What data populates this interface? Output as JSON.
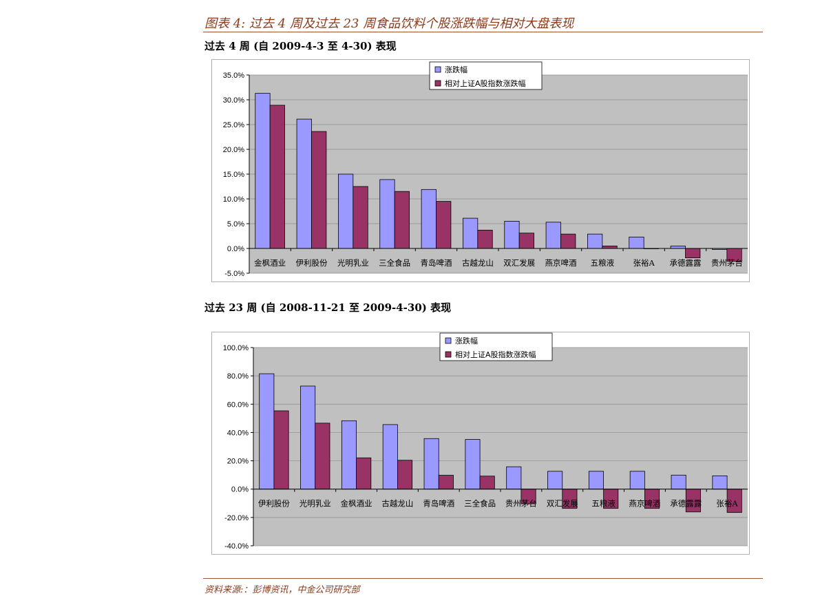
{
  "figure_title": "图表 4:  过去 4 周及过去 23 周食品饮料个股涨跌幅与相对大盘表现",
  "source": "资料来源:：彭博资讯，中金公司研究部",
  "colors": {
    "series1": "#9999ff",
    "series2": "#993366",
    "plot_bg": "#c0c0c0",
    "accent": "#8b3a1a"
  },
  "sections": [
    {
      "title": "过去 4 周  (自 2009-4-3 至 4-30)  表现"
    },
    {
      "title": "过去 23 周  (自 2008-11-21 至 2009-4-30)  表现"
    }
  ],
  "chart_data": [
    {
      "type": "bar",
      "title": "",
      "xlabel": "",
      "ylabel": "",
      "ylim": [
        -5,
        35
      ],
      "ytick_step": 5,
      "ytick_labels": [
        "-5.0%",
        "0.0%",
        "5.0%",
        "10.0%",
        "15.0%",
        "20.0%",
        "25.0%",
        "30.0%",
        "35.0%"
      ],
      "grid": true,
      "legend_position": "top-center",
      "categories": [
        "金枫酒业",
        "伊利股份",
        "光明乳业",
        "三全食品",
        "青岛啤酒",
        "古越龙山",
        "双汇发展",
        "燕京啤酒",
        "五粮液",
        "张裕A",
        "承德露露",
        "贵州茅台"
      ],
      "series": [
        {
          "name": "涨跌幅",
          "values": [
            31.3,
            26.1,
            15.0,
            13.9,
            11.9,
            6.1,
            5.5,
            5.3,
            2.9,
            2.3,
            0.5,
            -0.2
          ]
        },
        {
          "name": "相对上证A股指数涨跌幅",
          "values": [
            28.9,
            23.6,
            12.5,
            11.5,
            9.5,
            3.7,
            3.1,
            2.9,
            0.5,
            0.0,
            -1.9,
            -2.6
          ]
        }
      ]
    },
    {
      "type": "bar",
      "title": "",
      "xlabel": "",
      "ylabel": "",
      "ylim": [
        -40,
        100
      ],
      "ytick_step": 20,
      "ytick_labels": [
        "-40.0%",
        "-20.0%",
        "0.0%",
        "20.0%",
        "40.0%",
        "60.0%",
        "80.0%",
        "100.0%"
      ],
      "grid": true,
      "legend_position": "top-center",
      "categories": [
        "伊利股份",
        "光明乳业",
        "金枫酒业",
        "古越龙山",
        "青岛啤酒",
        "三全食品",
        "贵州茅台",
        "双汇发展",
        "五粮液",
        "燕京啤酒",
        "承德露露",
        "张裕A"
      ],
      "series": [
        {
          "name": "涨跌幅",
          "values": [
            81.5,
            72.8,
            48.3,
            45.6,
            35.7,
            35.1,
            15.8,
            12.6,
            12.6,
            12.6,
            9.9,
            9.4
          ]
        },
        {
          "name": "相对上证A股指数涨跌幅",
          "values": [
            55.3,
            46.6,
            22.1,
            20.4,
            9.8,
            9.2,
            -10.4,
            -13.6,
            -13.6,
            -13.6,
            -16.1,
            -16.5
          ]
        }
      ]
    }
  ]
}
